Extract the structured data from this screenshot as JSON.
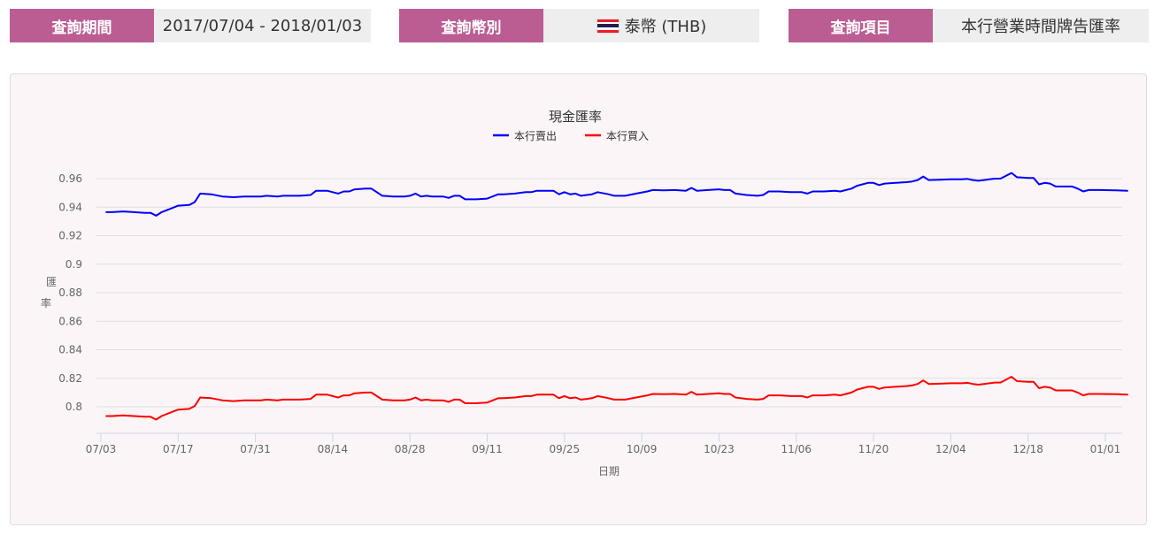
{
  "filters": {
    "period": {
      "label": "查詢期間",
      "value": "2017/07/04 - 2018/01/03"
    },
    "currency": {
      "label": "查詢幣別",
      "value": "泰幣 (THB)",
      "flag_icon": "thailand-flag-icon",
      "flag_colors": [
        "#ed1c24",
        "#ffffff",
        "#241d4f",
        "#ffffff",
        "#ed1c24"
      ]
    },
    "item": {
      "label": "查詢項目",
      "value": "本行營業時間牌告匯率"
    }
  },
  "colors": {
    "accent": "#bb5d93",
    "sell": "#0000ff",
    "buy": "#ff0000",
    "grid": "#e0e0e0",
    "axis": "#ccd6eb"
  },
  "chart_data": {
    "type": "line",
    "title": "現金匯率",
    "xlabel": "日期",
    "ylabel": "匯率",
    "ylim": [
      0.78,
      0.97
    ],
    "yticks": [
      "0.96",
      "0.94",
      "0.92",
      "0.9",
      "0.88",
      "0.86",
      "0.84",
      "0.82",
      "0.8"
    ],
    "ytick_values": [
      0.96,
      0.94,
      0.92,
      0.9,
      0.88,
      0.86,
      0.84,
      0.82,
      0.8
    ],
    "xticks": [
      "07/03",
      "07/17",
      "07/31",
      "08/14",
      "08/28",
      "09/11",
      "09/25",
      "10/09",
      "10/23",
      "11/06",
      "11/20",
      "12/04",
      "12/18",
      "01/01"
    ],
    "grid": true,
    "legend_position": "top",
    "x_unit": "days since 07/03",
    "series": [
      {
        "name": "本行賣出",
        "color": "#0000ff",
        "points": [
          [
            1,
            0.9365
          ],
          [
            2,
            0.9365
          ],
          [
            4,
            0.937
          ],
          [
            6,
            0.9365
          ],
          [
            8,
            0.936
          ],
          [
            9,
            0.936
          ],
          [
            10,
            0.934
          ],
          [
            11,
            0.9365
          ],
          [
            13,
            0.9395
          ],
          [
            14,
            0.941
          ],
          [
            16,
            0.9415
          ],
          [
            17,
            0.9435
          ],
          [
            18,
            0.9495
          ],
          [
            20,
            0.949
          ],
          [
            22,
            0.9475
          ],
          [
            24,
            0.947
          ],
          [
            26,
            0.9475
          ],
          [
            28,
            0.9475
          ],
          [
            29,
            0.9475
          ],
          [
            30,
            0.948
          ],
          [
            32,
            0.9475
          ],
          [
            33,
            0.948
          ],
          [
            35,
            0.948
          ],
          [
            36,
            0.948
          ],
          [
            38,
            0.9485
          ],
          [
            39,
            0.9515
          ],
          [
            41,
            0.9515
          ],
          [
            42,
            0.9505
          ],
          [
            43,
            0.9495
          ],
          [
            44,
            0.951
          ],
          [
            45,
            0.951
          ],
          [
            46,
            0.9525
          ],
          [
            48,
            0.953
          ],
          [
            49,
            0.953
          ],
          [
            50,
            0.9505
          ],
          [
            51,
            0.948
          ],
          [
            53,
            0.9475
          ],
          [
            55,
            0.9475
          ],
          [
            56,
            0.948
          ],
          [
            57,
            0.9495
          ],
          [
            58,
            0.9475
          ],
          [
            59,
            0.948
          ],
          [
            60,
            0.9475
          ],
          [
            62,
            0.9475
          ],
          [
            63,
            0.9465
          ],
          [
            64,
            0.948
          ],
          [
            65,
            0.948
          ],
          [
            66,
            0.9455
          ],
          [
            68,
            0.9455
          ],
          [
            70,
            0.946
          ],
          [
            72,
            0.949
          ],
          [
            73,
            0.949
          ],
          [
            75,
            0.9495
          ],
          [
            77,
            0.9505
          ],
          [
            78,
            0.9505
          ],
          [
            79,
            0.9515
          ],
          [
            81,
            0.9515
          ],
          [
            82,
            0.9515
          ],
          [
            83,
            0.949
          ],
          [
            84,
            0.9505
          ],
          [
            85,
            0.949
          ],
          [
            86,
            0.9495
          ],
          [
            87,
            0.948
          ],
          [
            88,
            0.9485
          ],
          [
            89,
            0.949
          ],
          [
            90,
            0.9505
          ],
          [
            92,
            0.949
          ],
          [
            93,
            0.948
          ],
          [
            95,
            0.948
          ],
          [
            97,
            0.9495
          ],
          [
            99,
            0.951
          ],
          [
            100,
            0.952
          ],
          [
            102,
            0.9518
          ],
          [
            104,
            0.952
          ],
          [
            106,
            0.9515
          ],
          [
            107,
            0.9535
          ],
          [
            108,
            0.9515
          ],
          [
            110,
            0.952
          ],
          [
            112,
            0.9525
          ],
          [
            113,
            0.952
          ],
          [
            114,
            0.952
          ],
          [
            115,
            0.9495
          ],
          [
            117,
            0.9485
          ],
          [
            119,
            0.948
          ],
          [
            120,
            0.9485
          ],
          [
            121,
            0.951
          ],
          [
            123,
            0.951
          ],
          [
            125,
            0.9505
          ],
          [
            127,
            0.9505
          ],
          [
            128,
            0.9495
          ],
          [
            129,
            0.951
          ],
          [
            131,
            0.951
          ],
          [
            133,
            0.9515
          ],
          [
            134,
            0.951
          ],
          [
            135,
            0.952
          ],
          [
            136,
            0.953
          ],
          [
            137,
            0.955
          ],
          [
            139,
            0.957
          ],
          [
            140,
            0.957
          ],
          [
            141,
            0.9555
          ],
          [
            142,
            0.9565
          ],
          [
            144,
            0.957
          ],
          [
            146,
            0.9575
          ],
          [
            147,
            0.958
          ],
          [
            148,
            0.959
          ],
          [
            149,
            0.9615
          ],
          [
            150,
            0.959
          ],
          [
            152,
            0.9592
          ],
          [
            154,
            0.9595
          ],
          [
            156,
            0.9595
          ],
          [
            157,
            0.9598
          ],
          [
            158,
            0.959
          ],
          [
            159,
            0.9585
          ],
          [
            160,
            0.959
          ],
          [
            161,
            0.9595
          ],
          [
            162,
            0.96
          ],
          [
            163,
            0.96
          ],
          [
            164,
            0.962
          ],
          [
            165,
            0.964
          ],
          [
            166,
            0.961
          ],
          [
            168,
            0.9605
          ],
          [
            169,
            0.9605
          ],
          [
            170,
            0.956
          ],
          [
            171,
            0.957
          ],
          [
            172,
            0.9565
          ],
          [
            173,
            0.9545
          ],
          [
            175,
            0.9545
          ],
          [
            176,
            0.9545
          ],
          [
            177,
            0.953
          ],
          [
            178,
            0.951
          ],
          [
            179,
            0.952
          ],
          [
            181,
            0.952
          ],
          [
            184,
            0.9518
          ],
          [
            186,
            0.9515
          ]
        ]
      },
      {
        "name": "本行買入",
        "color": "#ff0000",
        "points": [
          [
            1,
            0.7935
          ],
          [
            2,
            0.7935
          ],
          [
            4,
            0.794
          ],
          [
            6,
            0.7935
          ],
          [
            8,
            0.793
          ],
          [
            9,
            0.793
          ],
          [
            10,
            0.791
          ],
          [
            11,
            0.7935
          ],
          [
            13,
            0.7965
          ],
          [
            14,
            0.798
          ],
          [
            16,
            0.7985
          ],
          [
            17,
            0.8005
          ],
          [
            18,
            0.8065
          ],
          [
            20,
            0.806
          ],
          [
            22,
            0.8045
          ],
          [
            24,
            0.804
          ],
          [
            26,
            0.8045
          ],
          [
            28,
            0.8045
          ],
          [
            29,
            0.8045
          ],
          [
            30,
            0.805
          ],
          [
            32,
            0.8045
          ],
          [
            33,
            0.805
          ],
          [
            35,
            0.805
          ],
          [
            36,
            0.805
          ],
          [
            38,
            0.8055
          ],
          [
            39,
            0.8085
          ],
          [
            41,
            0.8085
          ],
          [
            42,
            0.8075
          ],
          [
            43,
            0.8065
          ],
          [
            44,
            0.808
          ],
          [
            45,
            0.808
          ],
          [
            46,
            0.8095
          ],
          [
            48,
            0.81
          ],
          [
            49,
            0.81
          ],
          [
            50,
            0.8075
          ],
          [
            51,
            0.805
          ],
          [
            53,
            0.8045
          ],
          [
            55,
            0.8045
          ],
          [
            56,
            0.805
          ],
          [
            57,
            0.8065
          ],
          [
            58,
            0.8045
          ],
          [
            59,
            0.805
          ],
          [
            60,
            0.8045
          ],
          [
            62,
            0.8045
          ],
          [
            63,
            0.8035
          ],
          [
            64,
            0.805
          ],
          [
            65,
            0.805
          ],
          [
            66,
            0.8025
          ],
          [
            68,
            0.8025
          ],
          [
            70,
            0.803
          ],
          [
            72,
            0.806
          ],
          [
            73,
            0.806
          ],
          [
            75,
            0.8065
          ],
          [
            77,
            0.8075
          ],
          [
            78,
            0.8075
          ],
          [
            79,
            0.8085
          ],
          [
            81,
            0.8085
          ],
          [
            82,
            0.8085
          ],
          [
            83,
            0.806
          ],
          [
            84,
            0.8075
          ],
          [
            85,
            0.806
          ],
          [
            86,
            0.8065
          ],
          [
            87,
            0.805
          ],
          [
            88,
            0.8055
          ],
          [
            89,
            0.806
          ],
          [
            90,
            0.8075
          ],
          [
            92,
            0.806
          ],
          [
            93,
            0.805
          ],
          [
            95,
            0.805
          ],
          [
            97,
            0.8065
          ],
          [
            99,
            0.808
          ],
          [
            100,
            0.809
          ],
          [
            102,
            0.8088
          ],
          [
            104,
            0.809
          ],
          [
            106,
            0.8085
          ],
          [
            107,
            0.8105
          ],
          [
            108,
            0.8085
          ],
          [
            110,
            0.809
          ],
          [
            112,
            0.8095
          ],
          [
            113,
            0.809
          ],
          [
            114,
            0.809
          ],
          [
            115,
            0.8065
          ],
          [
            117,
            0.8055
          ],
          [
            119,
            0.805
          ],
          [
            120,
            0.8055
          ],
          [
            121,
            0.808
          ],
          [
            123,
            0.808
          ],
          [
            125,
            0.8075
          ],
          [
            127,
            0.8075
          ],
          [
            128,
            0.8065
          ],
          [
            129,
            0.808
          ],
          [
            131,
            0.808
          ],
          [
            133,
            0.8085
          ],
          [
            134,
            0.808
          ],
          [
            135,
            0.809
          ],
          [
            136,
            0.81
          ],
          [
            137,
            0.812
          ],
          [
            139,
            0.814
          ],
          [
            140,
            0.814
          ],
          [
            141,
            0.8125
          ],
          [
            142,
            0.8135
          ],
          [
            144,
            0.814
          ],
          [
            146,
            0.8145
          ],
          [
            147,
            0.815
          ],
          [
            148,
            0.816
          ],
          [
            149,
            0.8185
          ],
          [
            150,
            0.816
          ],
          [
            152,
            0.8162
          ],
          [
            154,
            0.8165
          ],
          [
            156,
            0.8165
          ],
          [
            157,
            0.8168
          ],
          [
            158,
            0.816
          ],
          [
            159,
            0.8155
          ],
          [
            160,
            0.816
          ],
          [
            161,
            0.8165
          ],
          [
            162,
            0.817
          ],
          [
            163,
            0.817
          ],
          [
            164,
            0.819
          ],
          [
            165,
            0.821
          ],
          [
            166,
            0.818
          ],
          [
            168,
            0.8175
          ],
          [
            169,
            0.8175
          ],
          [
            170,
            0.813
          ],
          [
            171,
            0.814
          ],
          [
            172,
            0.8135
          ],
          [
            173,
            0.8115
          ],
          [
            175,
            0.8115
          ],
          [
            176,
            0.8115
          ],
          [
            177,
            0.81
          ],
          [
            178,
            0.808
          ],
          [
            179,
            0.809
          ],
          [
            181,
            0.809
          ],
          [
            184,
            0.8088
          ],
          [
            186,
            0.8085
          ]
        ]
      }
    ]
  }
}
